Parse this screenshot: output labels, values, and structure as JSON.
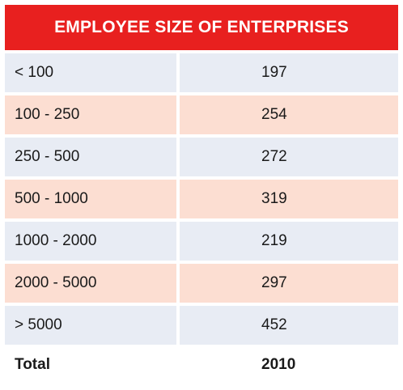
{
  "chart_data": {
    "type": "table",
    "title": "EMPLOYEE SIZE OF ENTERPRISES",
    "rows": [
      {
        "label": "< 100",
        "value": 197
      },
      {
        "label": "100 - 250",
        "value": 254
      },
      {
        "label": "250 - 500",
        "value": 272
      },
      {
        "label": "500 - 1000",
        "value": 319
      },
      {
        "label": "1000 - 2000",
        "value": 219
      },
      {
        "label": "2000 - 5000",
        "value": 297
      },
      {
        "label": "> 5000",
        "value": 452
      }
    ],
    "total": {
      "label": "Total",
      "value": 2010
    }
  },
  "colors": {
    "header_bg": "#e8201f",
    "row_blue": "#e8ecf4",
    "row_peach": "#fcded2"
  }
}
